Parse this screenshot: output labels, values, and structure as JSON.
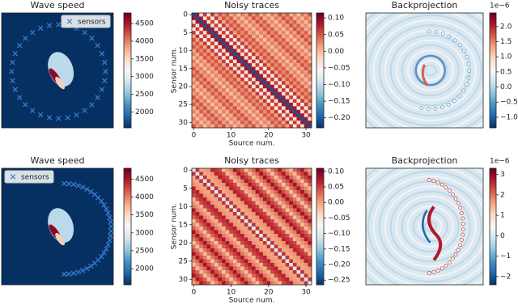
{
  "chart_data": [
    {
      "type": "image",
      "title": "Wave speed",
      "sensors": {
        "name": "sensors",
        "color": "#3a7fd5"
      },
      "legend": "upper right",
      "colorbar": {
        "clim": [
          1550,
          4800
        ],
        "ticks": [
          2000,
          2500,
          3000,
          3500,
          4000,
          4500
        ]
      }
    },
    {
      "type": "heatmap",
      "title": "Noisy traces",
      "xlabel": "Source num.",
      "ylabel": "Sensor num.",
      "xlim": [
        -0.5,
        31.5
      ],
      "ylim": [
        31.5,
        -0.5
      ],
      "xticks": [
        0,
        10,
        20,
        30
      ],
      "yticks": [
        0,
        5,
        10,
        15,
        20,
        25,
        30
      ],
      "colorbar": {
        "clim": [
          -0.23,
          0.115
        ],
        "ticks": [
          {
            "value": 0.1,
            "label": "0.10"
          },
          {
            "value": 0.05,
            "label": "0.05"
          },
          {
            "value": 0,
            "label": "0.00"
          },
          {
            "value": -0.05,
            "label": "−0.05"
          },
          {
            "value": -0.1,
            "label": "−0.10"
          },
          {
            "value": -0.15,
            "label": "−0.15"
          },
          {
            "value": -0.2,
            "label": "−0.20"
          }
        ]
      }
    },
    {
      "type": "image",
      "title": "Backprojection",
      "colorbar": {
        "clim": [
          -1.35e-06,
          2.45e-06
        ],
        "offset_label": "1e−6",
        "ticks": [
          {
            "value": 2e-06,
            "label": "2.0"
          },
          {
            "value": 1.5e-06,
            "label": "1.5"
          },
          {
            "value": 1e-06,
            "label": "1.0"
          },
          {
            "value": 5e-07,
            "label": "0.5"
          },
          {
            "value": 0,
            "label": "0.0"
          },
          {
            "value": -5e-07,
            "label": "−0.5"
          },
          {
            "value": -1e-06,
            "label": "−1.0"
          }
        ]
      }
    },
    {
      "type": "image",
      "title": "Wave speed",
      "sensors": {
        "name": "sensors",
        "color": "#3a7fd5"
      },
      "legend": "upper left",
      "colorbar": {
        "clim": [
          1550,
          4800
        ],
        "ticks": [
          2000,
          2500,
          3000,
          3500,
          4000,
          4500
        ]
      }
    },
    {
      "type": "heatmap",
      "title": "Noisy traces",
      "xlabel": "Source num.",
      "ylabel": "Sensor num.",
      "xlim": [
        -0.5,
        31.5
      ],
      "ylim": [
        31.5,
        -0.5
      ],
      "xticks": [
        0,
        10,
        20,
        30
      ],
      "yticks": [
        0,
        5,
        10,
        15,
        20,
        25,
        30
      ],
      "colorbar": {
        "clim": [
          -0.265,
          0.11
        ],
        "ticks": [
          {
            "value": 0.1,
            "label": "0.10"
          },
          {
            "value": 0.05,
            "label": "0.05"
          },
          {
            "value": 0,
            "label": "0.00"
          },
          {
            "value": -0.05,
            "label": "−0.05"
          },
          {
            "value": -0.1,
            "label": "−0.10"
          },
          {
            "value": -0.15,
            "label": "−0.15"
          },
          {
            "value": -0.2,
            "label": "−0.20"
          },
          {
            "value": -0.25,
            "label": "−0.25"
          }
        ]
      }
    },
    {
      "type": "image",
      "title": "Backprojection",
      "colorbar": {
        "clim": [
          -2.4e-06,
          3.3e-06
        ],
        "offset_label": "1e−6",
        "ticks": [
          {
            "value": 3e-06,
            "label": "3"
          },
          {
            "value": 2e-06,
            "label": "2"
          },
          {
            "value": 1e-06,
            "label": "1"
          },
          {
            "value": 0,
            "label": "0"
          },
          {
            "value": -1e-06,
            "label": "−1"
          },
          {
            "value": -2e-06,
            "label": "−2"
          }
        ]
      }
    }
  ]
}
